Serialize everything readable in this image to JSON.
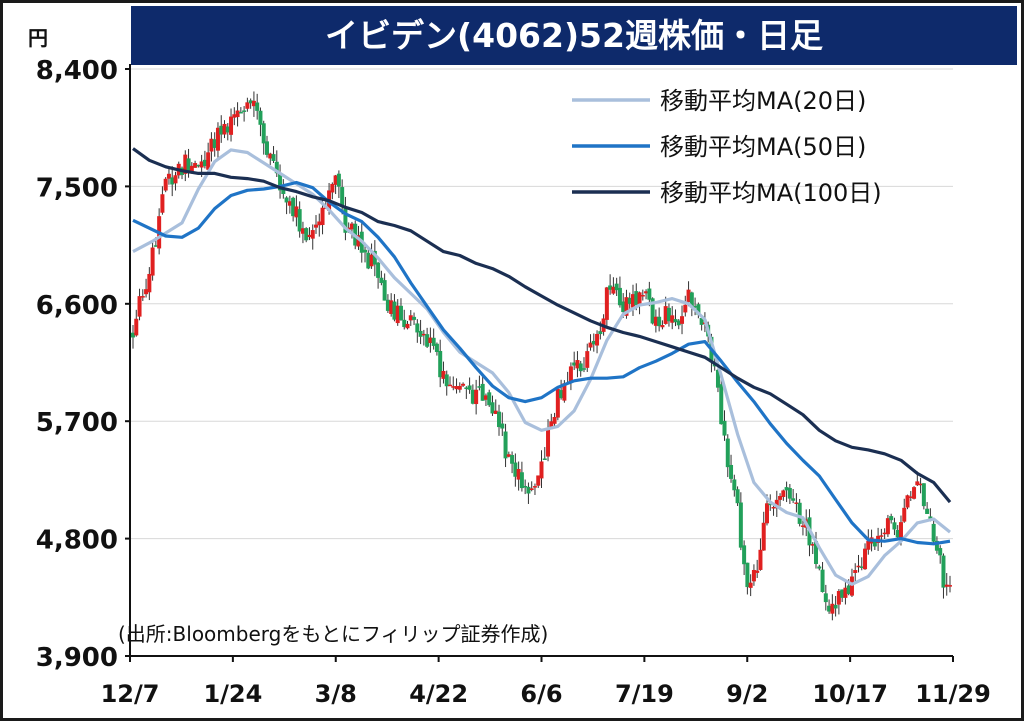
{
  "title": "イビデン(4062)52週株価・日足",
  "y_unit": "円",
  "source": "(出所:Bloombergをもとにフィリップ証券作成)",
  "colors": {
    "title_bg": "#0e2a6b",
    "up": "#e02020",
    "down": "#22a05a",
    "ma20": "#a9bfdc",
    "ma50": "#1f74c6",
    "ma100": "#1b2f52",
    "grid": "#d8d8d8"
  },
  "chart_data": {
    "type": "candlestick",
    "xlabel": "",
    "ylabel": "円",
    "ylim": [
      3900,
      8400
    ],
    "yticks": [
      3900,
      4800,
      5700,
      6600,
      7500,
      8400
    ],
    "ytick_labels": [
      "3,900",
      "4,800",
      "5,700",
      "6,600",
      "7,500",
      "8,400"
    ],
    "xtick_labels": [
      "12/7",
      "1/24",
      "3/8",
      "4/22",
      "6/6",
      "7/19",
      "9/2",
      "10/17",
      "11/29"
    ],
    "trading_days": 250,
    "grid": true,
    "legend": "top-right",
    "series": [
      {
        "name": "移動平均MA(20日)",
        "key": "ma20",
        "color": "#a9bfdc",
        "points": [
          [
            0,
            7000
          ],
          [
            6,
            7080
          ],
          [
            15,
            7220
          ],
          [
            20,
            7480
          ],
          [
            25,
            7690
          ],
          [
            30,
            7780
          ],
          [
            35,
            7760
          ],
          [
            40,
            7680
          ],
          [
            45,
            7600
          ],
          [
            50,
            7520
          ],
          [
            55,
            7440
          ],
          [
            60,
            7320
          ],
          [
            65,
            7180
          ],
          [
            70,
            7080
          ],
          [
            75,
            6950
          ],
          [
            80,
            6800
          ],
          [
            85,
            6680
          ],
          [
            90,
            6560
          ],
          [
            95,
            6380
          ],
          [
            100,
            6230
          ],
          [
            105,
            6150
          ],
          [
            110,
            6070
          ],
          [
            115,
            5920
          ],
          [
            120,
            5690
          ],
          [
            125,
            5630
          ],
          [
            130,
            5660
          ],
          [
            135,
            5780
          ],
          [
            140,
            6020
          ],
          [
            145,
            6320
          ],
          [
            150,
            6520
          ],
          [
            155,
            6590
          ],
          [
            160,
            6610
          ],
          [
            165,
            6640
          ],
          [
            170,
            6600
          ],
          [
            175,
            6480
          ],
          [
            180,
            6050
          ],
          [
            185,
            5600
          ],
          [
            190,
            5230
          ],
          [
            195,
            5080
          ],
          [
            200,
            5000
          ],
          [
            205,
            4960
          ],
          [
            210,
            4730
          ],
          [
            215,
            4520
          ],
          [
            220,
            4450
          ],
          [
            225,
            4510
          ],
          [
            230,
            4670
          ],
          [
            235,
            4780
          ],
          [
            240,
            4920
          ],
          [
            245,
            4950
          ],
          [
            250,
            4850
          ]
        ]
      },
      {
        "name": "移動平均MA(50日)",
        "key": "ma50",
        "color": "#1f74c6",
        "points": [
          [
            0,
            7240
          ],
          [
            10,
            7120
          ],
          [
            15,
            7110
          ],
          [
            20,
            7180
          ],
          [
            25,
            7330
          ],
          [
            30,
            7430
          ],
          [
            35,
            7470
          ],
          [
            40,
            7480
          ],
          [
            45,
            7500
          ],
          [
            50,
            7530
          ],
          [
            55,
            7490
          ],
          [
            60,
            7380
          ],
          [
            65,
            7290
          ],
          [
            70,
            7230
          ],
          [
            75,
            7110
          ],
          [
            80,
            6960
          ],
          [
            85,
            6760
          ],
          [
            90,
            6580
          ],
          [
            95,
            6400
          ],
          [
            100,
            6260
          ],
          [
            105,
            6110
          ],
          [
            110,
            5970
          ],
          [
            115,
            5880
          ],
          [
            120,
            5850
          ],
          [
            125,
            5880
          ],
          [
            130,
            5960
          ],
          [
            135,
            6010
          ],
          [
            140,
            6030
          ],
          [
            145,
            6030
          ],
          [
            150,
            6040
          ],
          [
            155,
            6110
          ],
          [
            160,
            6160
          ],
          [
            165,
            6220
          ],
          [
            170,
            6290
          ],
          [
            175,
            6310
          ],
          [
            180,
            6160
          ],
          [
            185,
            6000
          ],
          [
            190,
            5850
          ],
          [
            195,
            5680
          ],
          [
            200,
            5530
          ],
          [
            205,
            5400
          ],
          [
            210,
            5280
          ],
          [
            215,
            5100
          ],
          [
            220,
            4920
          ],
          [
            225,
            4790
          ],
          [
            230,
            4780
          ],
          [
            235,
            4800
          ],
          [
            240,
            4770
          ],
          [
            245,
            4760
          ],
          [
            250,
            4780
          ]
        ]
      },
      {
        "name": "移動平均MA(100日)",
        "key": "ma100",
        "color": "#1b2f52",
        "points": [
          [
            0,
            7790
          ],
          [
            5,
            7700
          ],
          [
            10,
            7650
          ],
          [
            15,
            7620
          ],
          [
            20,
            7600
          ],
          [
            25,
            7600
          ],
          [
            30,
            7570
          ],
          [
            35,
            7560
          ],
          [
            40,
            7540
          ],
          [
            45,
            7490
          ],
          [
            50,
            7460
          ],
          [
            55,
            7420
          ],
          [
            60,
            7390
          ],
          [
            65,
            7340
          ],
          [
            70,
            7300
          ],
          [
            75,
            7230
          ],
          [
            80,
            7200
          ],
          [
            85,
            7160
          ],
          [
            90,
            7080
          ],
          [
            95,
            7000
          ],
          [
            100,
            6970
          ],
          [
            105,
            6910
          ],
          [
            110,
            6870
          ],
          [
            115,
            6810
          ],
          [
            120,
            6730
          ],
          [
            125,
            6660
          ],
          [
            130,
            6590
          ],
          [
            135,
            6530
          ],
          [
            140,
            6470
          ],
          [
            145,
            6420
          ],
          [
            150,
            6380
          ],
          [
            155,
            6350
          ],
          [
            160,
            6310
          ],
          [
            165,
            6270
          ],
          [
            170,
            6230
          ],
          [
            175,
            6190
          ],
          [
            180,
            6110
          ],
          [
            185,
            6030
          ],
          [
            190,
            5960
          ],
          [
            195,
            5910
          ],
          [
            200,
            5830
          ],
          [
            205,
            5750
          ],
          [
            210,
            5630
          ],
          [
            215,
            5550
          ],
          [
            220,
            5500
          ],
          [
            225,
            5480
          ],
          [
            230,
            5450
          ],
          [
            235,
            5400
          ],
          [
            240,
            5300
          ],
          [
            245,
            5230
          ],
          [
            250,
            5080
          ]
        ]
      }
    ],
    "price_path": [
      [
        0,
        6400
      ],
      [
        3,
        6700
      ],
      [
        6,
        6980
      ],
      [
        10,
        7500
      ],
      [
        13,
        7600
      ],
      [
        16,
        7700
      ],
      [
        19,
        7600
      ],
      [
        23,
        7780
      ],
      [
        26,
        7880
      ],
      [
        30,
        7980
      ],
      [
        33,
        8080
      ],
      [
        36,
        8180
      ],
      [
        40,
        7900
      ],
      [
        43,
        7650
      ],
      [
        46,
        7450
      ],
      [
        50,
        7300
      ],
      [
        53,
        7100
      ],
      [
        56,
        7250
      ],
      [
        59,
        7350
      ],
      [
        62,
        7600
      ],
      [
        65,
        7200
      ],
      [
        70,
        7050
      ],
      [
        73,
        6900
      ],
      [
        76,
        6700
      ],
      [
        79,
        6550
      ],
      [
        82,
        6500
      ],
      [
        85,
        6450
      ],
      [
        88,
        6350
      ],
      [
        92,
        6250
      ],
      [
        95,
        6050
      ],
      [
        99,
        5980
      ],
      [
        102,
        5950
      ],
      [
        105,
        5900
      ],
      [
        108,
        5850
      ],
      [
        110,
        5750
      ],
      [
        112,
        5650
      ],
      [
        115,
        5400
      ],
      [
        118,
        5250
      ],
      [
        121,
        5220
      ],
      [
        124,
        5250
      ],
      [
        127,
        5600
      ],
      [
        130,
        5920
      ],
      [
        133,
        6000
      ],
      [
        136,
        6130
      ],
      [
        139,
        6200
      ],
      [
        142,
        6300
      ],
      [
        144,
        6550
      ],
      [
        146,
        6780
      ],
      [
        149,
        6560
      ],
      [
        153,
        6610
      ],
      [
        156,
        6680
      ],
      [
        159,
        6520
      ],
      [
        163,
        6500
      ],
      [
        167,
        6500
      ],
      [
        170,
        6720
      ],
      [
        172,
        6500
      ],
      [
        175,
        6400
      ],
      [
        177,
        6200
      ],
      [
        180,
        5750
      ],
      [
        182,
        5350
      ],
      [
        185,
        5000
      ],
      [
        188,
        4400
      ],
      [
        191,
        4600
      ],
      [
        194,
        5000
      ],
      [
        197,
        5150
      ],
      [
        200,
        5100
      ],
      [
        203,
        5000
      ],
      [
        206,
        4900
      ],
      [
        209,
        4600
      ],
      [
        211,
        4400
      ],
      [
        213,
        4200
      ],
      [
        216,
        4350
      ],
      [
        219,
        4450
      ],
      [
        222,
        4550
      ],
      [
        225,
        4700
      ],
      [
        228,
        4850
      ],
      [
        231,
        4920
      ],
      [
        234,
        4800
      ],
      [
        237,
        5050
      ],
      [
        240,
        5200
      ],
      [
        243,
        5020
      ],
      [
        246,
        4700
      ],
      [
        248,
        4500
      ],
      [
        250,
        4520
      ]
    ]
  }
}
